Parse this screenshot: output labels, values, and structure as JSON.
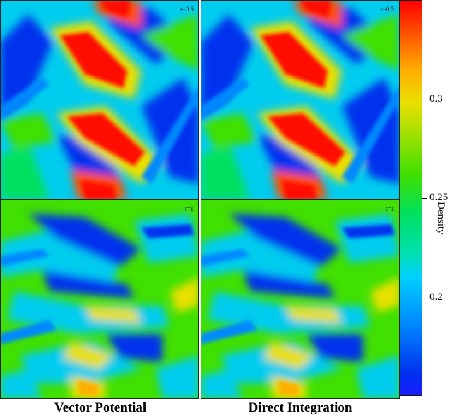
{
  "panels": [
    {
      "id": "vp-t05",
      "time_label": "t=0.5"
    },
    {
      "id": "di-t05",
      "time_label": "t=0.5"
    },
    {
      "id": "vp-t1",
      "time_label": "t=1"
    },
    {
      "id": "di-t1",
      "time_label": "t=1"
    }
  ],
  "column_labels": {
    "left": "Vector Potential",
    "right": "Direct Integration"
  },
  "colorbar": {
    "title": "Density",
    "ticks": [
      "0.3",
      "0.25",
      "0.2"
    ],
    "colors": {
      "low": "#1a1aff",
      "mid_low": "#00d0ff",
      "mid": "#00e060",
      "mid_high": "#e8e000",
      "high": "#ff0000"
    }
  }
}
